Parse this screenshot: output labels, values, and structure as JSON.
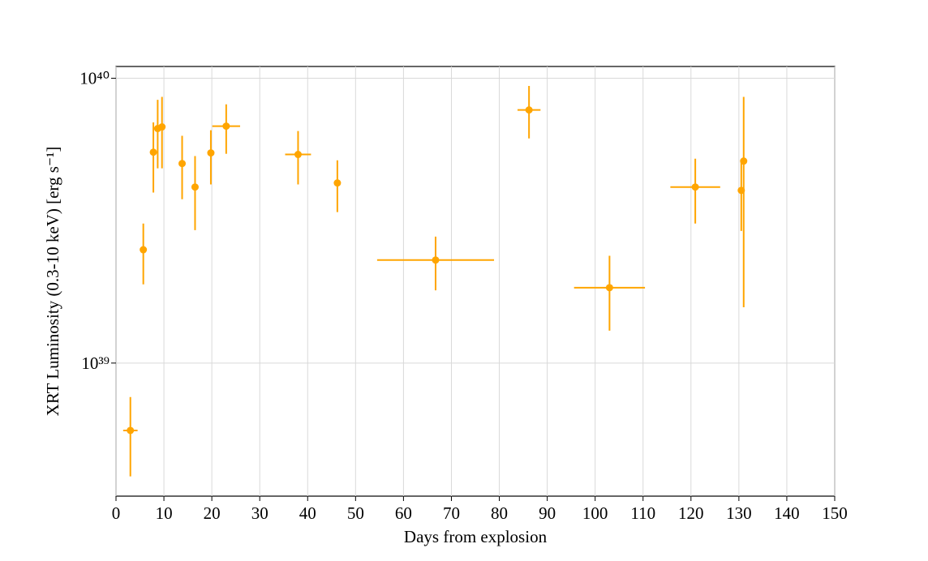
{
  "chart_data": {
    "type": "errorbar",
    "xlabel": "Days from explosion",
    "ylabel": "XRT Luminosity (0.3-10 keV) [erg s⁻¹]",
    "xlim": [
      0,
      150
    ],
    "xticks": [
      0,
      10,
      20,
      30,
      40,
      50,
      60,
      70,
      80,
      90,
      100,
      110,
      120,
      130,
      140,
      150
    ],
    "ylim": [
      3.41e+38,
      1.1e+40
    ],
    "yscale": "log",
    "yticks": [
      {
        "value": 1e+39,
        "label": "10³⁹"
      },
      {
        "value": 1e+40,
        "label": "10⁴⁰"
      }
    ],
    "grid": true,
    "series": [
      {
        "color": "#ffa500",
        "x": [
          3.0,
          5.7,
          7.8,
          8.7,
          9.6,
          13.8,
          16.5,
          19.8,
          23.0,
          38.0,
          46.2,
          66.7,
          86.2,
          103.0,
          120.9,
          130.5,
          131.0
        ],
        "values": [
          5.8e+38,
          2.5e+39,
          5.5e+39,
          6.66e+39,
          6.75e+39,
          5.02e+39,
          4.15e+39,
          5.47e+39,
          6.79e+39,
          5.4e+39,
          4.29e+39,
          2.3e+39,
          7.74e+39,
          1.84e+39,
          4.15e+39,
          4.04e+39,
          5.12e+39
        ],
        "xerr": [
          1.5,
          0.5,
          0,
          0,
          0,
          0,
          0,
          0,
          2.9,
          2.7,
          0,
          12.2,
          2.4,
          7.4,
          5.2,
          0,
          0
        ],
        "yerr_minus": [
          1.8e+38,
          6.1e+38,
          1.53e+39,
          1.83e+39,
          1.92e+39,
          1.26e+39,
          1.22e+39,
          1.23e+39,
          1.36e+39,
          1.16e+39,
          9e+38,
          5e+38,
          1.59e+39,
          5.4e+38,
          1.06e+39,
          1.13e+39,
          3.55e+39
        ],
        "yerr_plus": [
          1.8e+38,
          5.9e+38,
          1.5e+39,
          1.74e+39,
          1.85e+39,
          1.26e+39,
          1.18e+39,
          1.1e+39,
          1.31e+39,
          1.13e+39,
          8.6e+38,
          4.8e+38,
          1.66e+39,
          5.4e+38,
          1.07e+39,
          1.05e+39,
          3.48e+39
        ]
      }
    ]
  }
}
